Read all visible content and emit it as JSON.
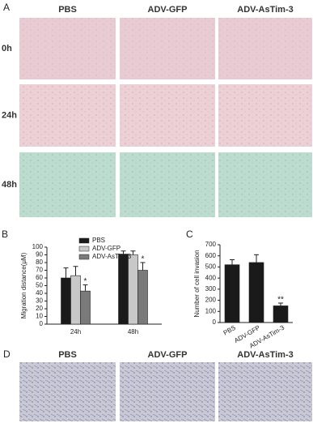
{
  "panel_a": {
    "label": "A",
    "columns": [
      "PBS",
      "ADV-GFP",
      "ADV-AsTim-3"
    ],
    "rows": [
      "0h",
      "24h",
      "48h"
    ]
  },
  "panel_d": {
    "label": "D",
    "columns": [
      "PBS",
      "ADV-GFP",
      "ADV-AsTim-3"
    ]
  },
  "chart_data": [
    {
      "type": "bar",
      "panel_label": "B",
      "ylabel": "Migration distance(μM)",
      "categories": [
        "24h",
        "48h"
      ],
      "series": [
        {
          "name": "PBS",
          "color": "#1a1a1a",
          "values": [
            60,
            91
          ],
          "errors": [
            13,
            4
          ]
        },
        {
          "name": "ADV-GFP",
          "color": "#c8c8c8",
          "values": [
            63,
            90
          ],
          "errors": [
            12,
            5
          ]
        },
        {
          "name": "ADV-AsTim-3",
          "color": "#7a7a7a",
          "values": [
            43,
            70
          ],
          "errors": [
            8,
            10
          ],
          "value_annotations": [
            "*",
            "*"
          ]
        }
      ],
      "ylim": [
        0,
        100
      ],
      "yticks": [
        0,
        10,
        20,
        30,
        40,
        50,
        60,
        70,
        80,
        90,
        100
      ]
    },
    {
      "type": "bar",
      "panel_label": "C",
      "ylabel": "Number of cell invasion",
      "categories": [
        "PBS",
        "ADV-GFP",
        "ADV-AsTim-3"
      ],
      "values": [
        520,
        540,
        150
      ],
      "errors": [
        45,
        70,
        25
      ],
      "color": "#1a1a1a",
      "value_annotations": [
        null,
        null,
        "**"
      ],
      "ylim": [
        0,
        700
      ],
      "yticks": [
        0,
        100,
        200,
        300,
        400,
        500,
        600,
        700
      ]
    }
  ]
}
